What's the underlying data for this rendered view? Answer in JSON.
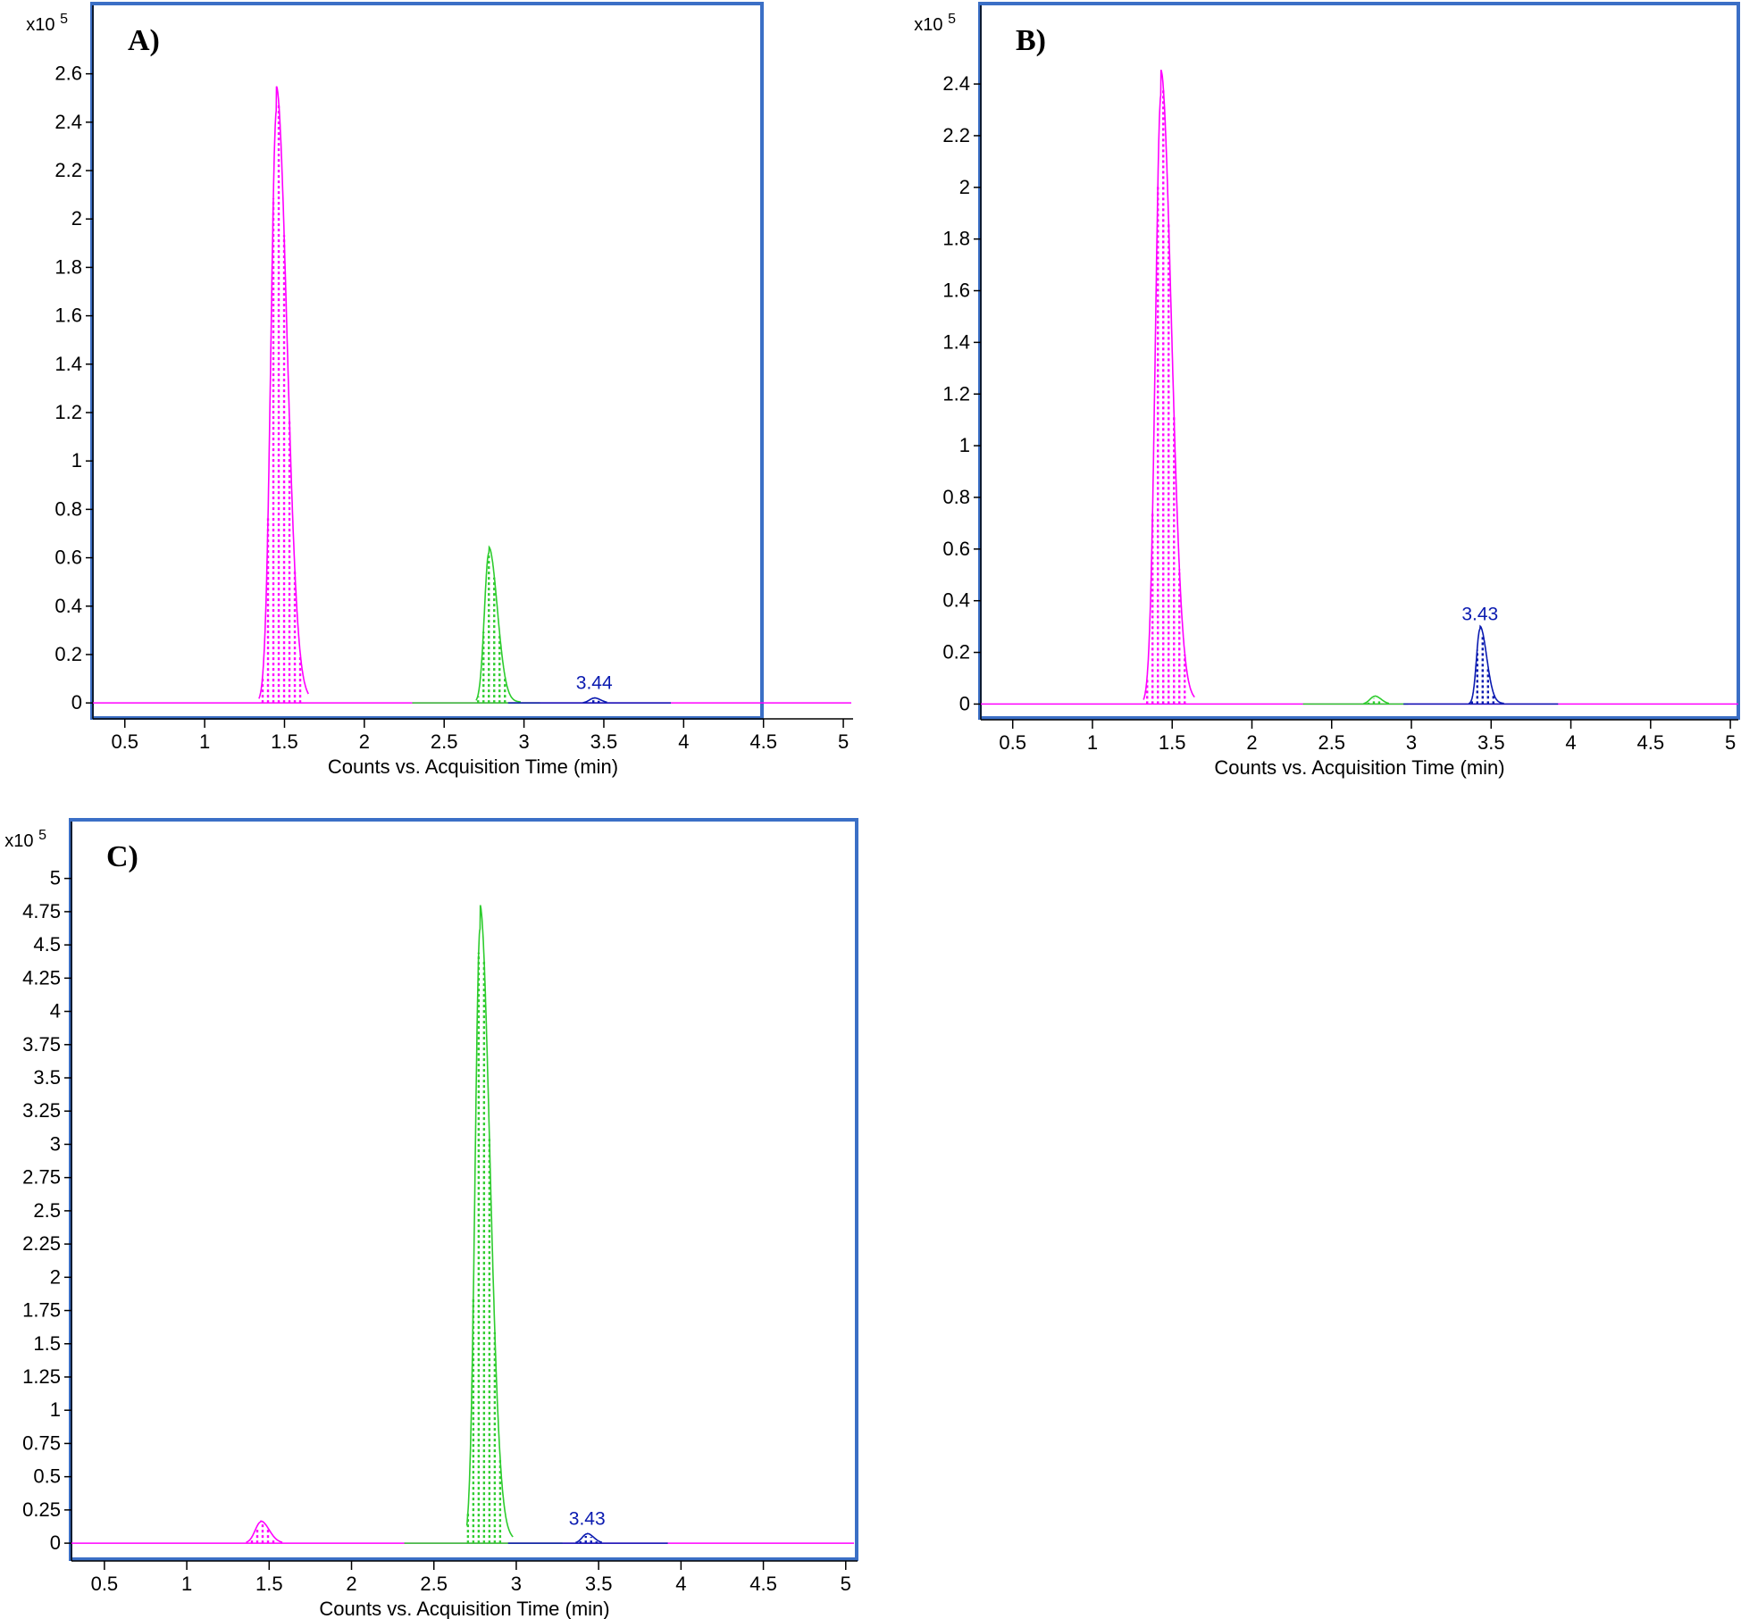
{
  "figure": {
    "frame_color": "#3b6fc6",
    "peak_colors": {
      "magenta": "#ff00ff",
      "green": "#2ecc2e",
      "blue": "#0a1ab0"
    }
  },
  "chart_data": [
    {
      "panel_label": "A)",
      "type": "line",
      "y_multiplier": "x10",
      "y_multiplier_exp": "5",
      "xlabel": "Counts vs. Acquisition Time (min)",
      "ylabel": "",
      "xlim": [
        0.3,
        5.05
      ],
      "ylim": [
        -0.04,
        2.75
      ],
      "xticks": [
        0.5,
        1,
        1.5,
        2,
        2.5,
        3,
        3.5,
        4,
        4.5,
        5
      ],
      "xtick_labels": [
        "0.5",
        "1",
        "1.5",
        "2",
        "2.5",
        "3",
        "3.5",
        "4",
        "4.5",
        "5"
      ],
      "yticks": [
        0,
        0.2,
        0.4,
        0.6,
        0.8,
        1,
        1.2,
        1.4,
        1.6,
        1.8,
        2,
        2.2,
        2.4,
        2.6
      ],
      "ytick_labels": [
        "0",
        "0.2",
        "0.4",
        "0.6",
        "0.8",
        "1",
        "1.2",
        "1.4",
        "1.6",
        "1.8",
        "2",
        "2.2",
        "2.4",
        "2.6"
      ],
      "series": [
        {
          "color": "magenta",
          "baseline": [
            0.3,
            5.05
          ],
          "peak_rt": 1.45,
          "height": 2.45,
          "sigma": 0.035,
          "tail": 0.06,
          "range": [
            1.34,
            1.65
          ]
        },
        {
          "color": "green",
          "baseline": [
            2.3,
            3.1
          ],
          "peak_rt": 2.78,
          "height": 0.62,
          "sigma": 0.028,
          "tail": 0.05,
          "range": [
            2.7,
            2.98
          ]
        },
        {
          "color": "blue",
          "baseline": [
            2.9,
            3.92
          ],
          "peak_rt": 3.44,
          "height": 0.02,
          "sigma": 0.03,
          "tail": 0.02,
          "range": [
            3.37,
            3.52
          ]
        }
      ],
      "annotations": [
        {
          "text": "3.44",
          "x": 3.44,
          "y": 0.02,
          "color": "blue"
        }
      ]
    },
    {
      "panel_label": "B)",
      "type": "line",
      "y_multiplier": "x10",
      "y_multiplier_exp": "5",
      "xlabel": "Counts vs. Acquisition Time (min)",
      "ylabel": "",
      "xlim": [
        0.3,
        5.05
      ],
      "ylim": [
        -0.04,
        2.58
      ],
      "xticks": [
        0.5,
        1,
        1.5,
        2,
        2.5,
        3,
        3.5,
        4,
        4.5,
        5
      ],
      "xtick_labels": [
        "0.5",
        "1",
        "1.5",
        "2",
        "2.5",
        "3",
        "3.5",
        "4",
        "4.5",
        "5"
      ],
      "yticks": [
        0,
        0.2,
        0.4,
        0.6,
        0.8,
        1,
        1.2,
        1.4,
        1.6,
        1.8,
        2,
        2.2,
        2.4
      ],
      "ytick_labels": [
        "0",
        "0.2",
        "0.4",
        "0.6",
        "0.8",
        "1",
        "1.2",
        "1.4",
        "1.6",
        "1.8",
        "2",
        "2.2",
        "2.4"
      ],
      "series": [
        {
          "color": "magenta",
          "baseline": [
            0.3,
            5.05
          ],
          "peak_rt": 1.43,
          "height": 2.36,
          "sigma": 0.035,
          "tail": 0.06,
          "range": [
            1.32,
            1.64
          ]
        },
        {
          "color": "green",
          "baseline": [
            2.32,
            2.98
          ],
          "peak_rt": 2.77,
          "height": 0.03,
          "sigma": 0.03,
          "tail": 0.02,
          "range": [
            2.7,
            2.86
          ]
        },
        {
          "color": "blue",
          "baseline": [
            2.95,
            3.92
          ],
          "peak_rt": 3.43,
          "height": 0.29,
          "sigma": 0.022,
          "tail": 0.04,
          "range": [
            3.36,
            3.58
          ]
        }
      ],
      "annotations": [
        {
          "text": "3.43",
          "x": 3.43,
          "y": 0.29,
          "color": "blue"
        }
      ]
    },
    {
      "panel_label": "C)",
      "type": "line",
      "y_multiplier": "x10",
      "y_multiplier_exp": "5",
      "xlabel": "Counts vs. Acquisition Time (min)",
      "ylabel": "",
      "xlim": [
        0.3,
        5.05
      ],
      "ylim": [
        -0.08,
        5.28
      ],
      "xticks": [
        0.5,
        1,
        1.5,
        2,
        2.5,
        3,
        3.5,
        4,
        4.5,
        5
      ],
      "xtick_labels": [
        "0.5",
        "1",
        "1.5",
        "2",
        "2.5",
        "3",
        "3.5",
        "4",
        "4.5",
        "5"
      ],
      "yticks": [
        0,
        0.25,
        0.5,
        0.75,
        1,
        1.25,
        1.5,
        1.75,
        2,
        2.25,
        2.5,
        2.75,
        3,
        3.25,
        3.5,
        3.75,
        4,
        4.25,
        4.5,
        4.75,
        5
      ],
      "ytick_labels": [
        "0",
        "0.25",
        "0.5",
        "0.75",
        "1",
        "1.25",
        "1.5",
        "1.75",
        "2",
        "2.25",
        "2.5",
        "2.75",
        "3",
        "3.25",
        "3.5",
        "3.75",
        "4",
        "4.25",
        "4.5",
        "4.75",
        "5"
      ],
      "series": [
        {
          "color": "magenta",
          "baseline": [
            0.3,
            5.05
          ],
          "peak_rt": 1.45,
          "height": 0.16,
          "sigma": 0.035,
          "tail": 0.03,
          "range": [
            1.36,
            1.58
          ]
        },
        {
          "color": "green",
          "baseline": [
            2.32,
            3.28
          ],
          "peak_rt": 2.78,
          "height": 4.62,
          "sigma": 0.03,
          "tail": 0.06,
          "range": [
            2.7,
            2.98
          ]
        },
        {
          "color": "blue",
          "baseline": [
            2.95,
            3.92
          ],
          "peak_rt": 3.43,
          "height": 0.07,
          "sigma": 0.03,
          "tail": 0.02,
          "range": [
            3.36,
            3.52
          ]
        }
      ],
      "annotations": [
        {
          "text": "3.43",
          "x": 3.43,
          "y": 0.07,
          "color": "blue"
        }
      ]
    }
  ]
}
